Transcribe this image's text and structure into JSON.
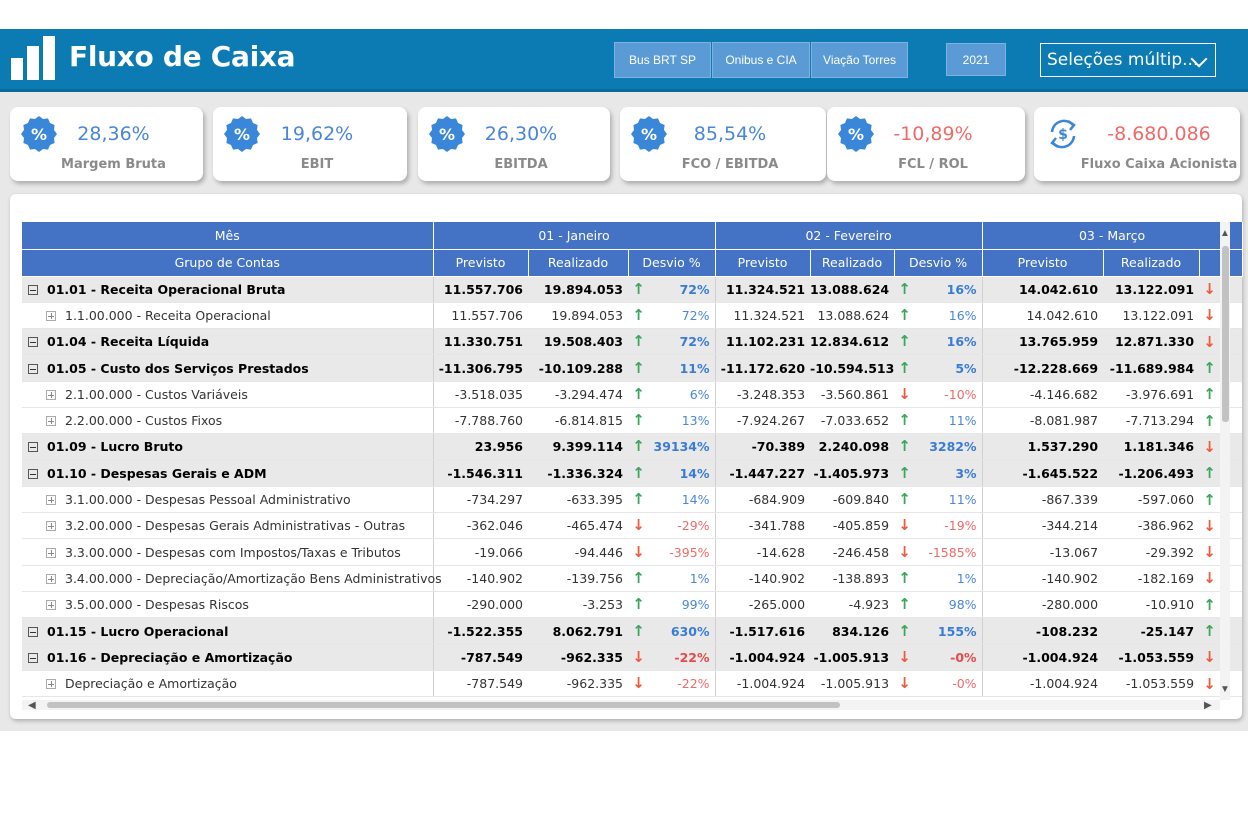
{
  "header": {
    "title": "Fluxo de Caixa",
    "slicers": [
      "Bus BRT SP",
      "Onibus e CIA",
      "Viação Torres"
    ],
    "year": "2021",
    "multi_select": "Seleções múltip..."
  },
  "kpis": [
    {
      "value": "28,36%",
      "label": "Margem Bruta",
      "icon": "percent-badge-icon",
      "tone": "positive"
    },
    {
      "value": "19,62%",
      "label": "EBIT",
      "icon": "percent-badge-icon",
      "tone": "positive"
    },
    {
      "value": "26,30%",
      "label": "EBITDA",
      "icon": "percent-badge-icon",
      "tone": "positive"
    },
    {
      "value": "85,54%",
      "label": "FCO / EBITDA",
      "icon": "percent-badge-icon",
      "tone": "positive"
    },
    {
      "value": "-10,89%",
      "label": "FCL / ROL",
      "icon": "percent-badge-icon",
      "tone": "negative"
    },
    {
      "value": "-8.680.086",
      "label": "Fluxo Caixa Acionista",
      "icon": "dollar-refresh-icon",
      "tone": "negative"
    }
  ],
  "colors": {
    "header": "#0c7bb3",
    "table_header": "#4472c4",
    "positive": "#4a86d8",
    "negative": "#f06a6a",
    "arrow_up": "#3aa65c",
    "arrow_down": "#ef5a3c"
  },
  "table": {
    "month_label": "Mês",
    "group_label": "Grupo de Contas",
    "months": [
      "01 - Janeiro",
      "02 - Fevereiro",
      "03 - Março"
    ],
    "sub_headers": [
      "Previsto",
      "Realizado",
      "Desvio %"
    ],
    "rows": [
      {
        "level": "grp",
        "name": "01.01 - Receita Operacional Bruta",
        "jan": [
          "11.557.706",
          "19.894.053",
          "up",
          "72%"
        ],
        "fev": [
          "11.324.521",
          "13.088.624",
          "up",
          "16%"
        ],
        "mar": [
          "14.042.610",
          "13.122.091",
          "down"
        ]
      },
      {
        "level": "sub",
        "name": "1.1.00.000 - Receita Operacional",
        "jan": [
          "11.557.706",
          "19.894.053",
          "up",
          "72%"
        ],
        "fev": [
          "11.324.521",
          "13.088.624",
          "up",
          "16%"
        ],
        "mar": [
          "14.042.610",
          "13.122.091",
          "down"
        ]
      },
      {
        "level": "grp",
        "name": "01.04 - Receita Líquida",
        "jan": [
          "11.330.751",
          "19.508.403",
          "up",
          "72%"
        ],
        "fev": [
          "11.102.231",
          "12.834.612",
          "up",
          "16%"
        ],
        "mar": [
          "13.765.959",
          "12.871.330",
          "down"
        ]
      },
      {
        "level": "grp",
        "name": "01.05 - Custo dos Serviços Prestados",
        "jan": [
          "-11.306.795",
          "-10.109.288",
          "up",
          "11%"
        ],
        "fev": [
          "-11.172.620",
          "-10.594.513",
          "up",
          "5%"
        ],
        "mar": [
          "-12.228.669",
          "-11.689.984",
          "up"
        ]
      },
      {
        "level": "sub",
        "name": "2.1.00.000 - Custos Variáveis",
        "jan": [
          "-3.518.035",
          "-3.294.474",
          "up",
          "6%"
        ],
        "fev": [
          "-3.248.353",
          "-3.560.861",
          "down",
          "-10%"
        ],
        "mar": [
          "-4.146.682",
          "-3.976.691",
          "up"
        ]
      },
      {
        "level": "sub",
        "name": "2.2.00.000 - Custos Fixos",
        "jan": [
          "-7.788.760",
          "-6.814.815",
          "up",
          "13%"
        ],
        "fev": [
          "-7.924.267",
          "-7.033.652",
          "up",
          "11%"
        ],
        "mar": [
          "-8.081.987",
          "-7.713.294",
          "up"
        ]
      },
      {
        "level": "grp",
        "name": "01.09 - Lucro Bruto",
        "jan": [
          "23.956",
          "9.399.114",
          "up",
          "39134%"
        ],
        "fev": [
          "-70.389",
          "2.240.098",
          "up",
          "3282%"
        ],
        "mar": [
          "1.537.290",
          "1.181.346",
          "down"
        ]
      },
      {
        "level": "grp",
        "name": "01.10 - Despesas Gerais e ADM",
        "jan": [
          "-1.546.311",
          "-1.336.324",
          "up",
          "14%"
        ],
        "fev": [
          "-1.447.227",
          "-1.405.973",
          "up",
          "3%"
        ],
        "mar": [
          "-1.645.522",
          "-1.206.493",
          "up"
        ]
      },
      {
        "level": "sub",
        "name": "3.1.00.000 - Despesas Pessoal Administrativo",
        "jan": [
          "-734.297",
          "-633.395",
          "up",
          "14%"
        ],
        "fev": [
          "-684.909",
          "-609.840",
          "up",
          "11%"
        ],
        "mar": [
          "-867.339",
          "-597.060",
          "up"
        ]
      },
      {
        "level": "sub",
        "name": "3.2.00.000 - Despesas Gerais Administrativas - Outras",
        "jan": [
          "-362.046",
          "-465.474",
          "down",
          "-29%"
        ],
        "fev": [
          "-341.788",
          "-405.859",
          "down",
          "-19%"
        ],
        "mar": [
          "-344.214",
          "-386.962",
          "down"
        ]
      },
      {
        "level": "sub",
        "name": "3.3.00.000 - Despesas com Impostos/Taxas e Tributos",
        "jan": [
          "-19.066",
          "-94.446",
          "down",
          "-395%"
        ],
        "fev": [
          "-14.628",
          "-246.458",
          "down",
          "-1585%"
        ],
        "mar": [
          "-13.067",
          "-29.392",
          "down"
        ]
      },
      {
        "level": "sub",
        "name": "3.4.00.000 - Depreciação/Amortização Bens Administrativos",
        "jan": [
          "-140.902",
          "-139.756",
          "up",
          "1%"
        ],
        "fev": [
          "-140.902",
          "-138.893",
          "up",
          "1%"
        ],
        "mar": [
          "-140.902",
          "-182.169",
          "down"
        ]
      },
      {
        "level": "sub",
        "name": "3.5.00.000 - Despesas Riscos",
        "jan": [
          "-290.000",
          "-3.253",
          "up",
          "99%"
        ],
        "fev": [
          "-265.000",
          "-4.923",
          "up",
          "98%"
        ],
        "mar": [
          "-280.000",
          "-10.910",
          "up"
        ]
      },
      {
        "level": "grp",
        "name": "01.15 - Lucro Operacional",
        "jan": [
          "-1.522.355",
          "8.062.791",
          "up",
          "630%"
        ],
        "fev": [
          "-1.517.616",
          "834.126",
          "up",
          "155%"
        ],
        "mar": [
          "-108.232",
          "-25.147",
          "up"
        ]
      },
      {
        "level": "grp",
        "name": "01.16 - Depreciação e Amortização",
        "jan": [
          "-787.549",
          "-962.335",
          "down",
          "-22%"
        ],
        "fev": [
          "-1.004.924",
          "-1.005.913",
          "down",
          "-0%"
        ],
        "mar": [
          "-1.004.924",
          "-1.053.559",
          "down"
        ]
      },
      {
        "level": "sub",
        "name": "Depreciação e Amortização",
        "jan": [
          "-787.549",
          "-962.335",
          "down",
          "-22%"
        ],
        "fev": [
          "-1.004.924",
          "-1.005.913",
          "down",
          "-0%"
        ],
        "mar": [
          "-1.004.924",
          "-1.053.559",
          "down"
        ]
      }
    ]
  }
}
